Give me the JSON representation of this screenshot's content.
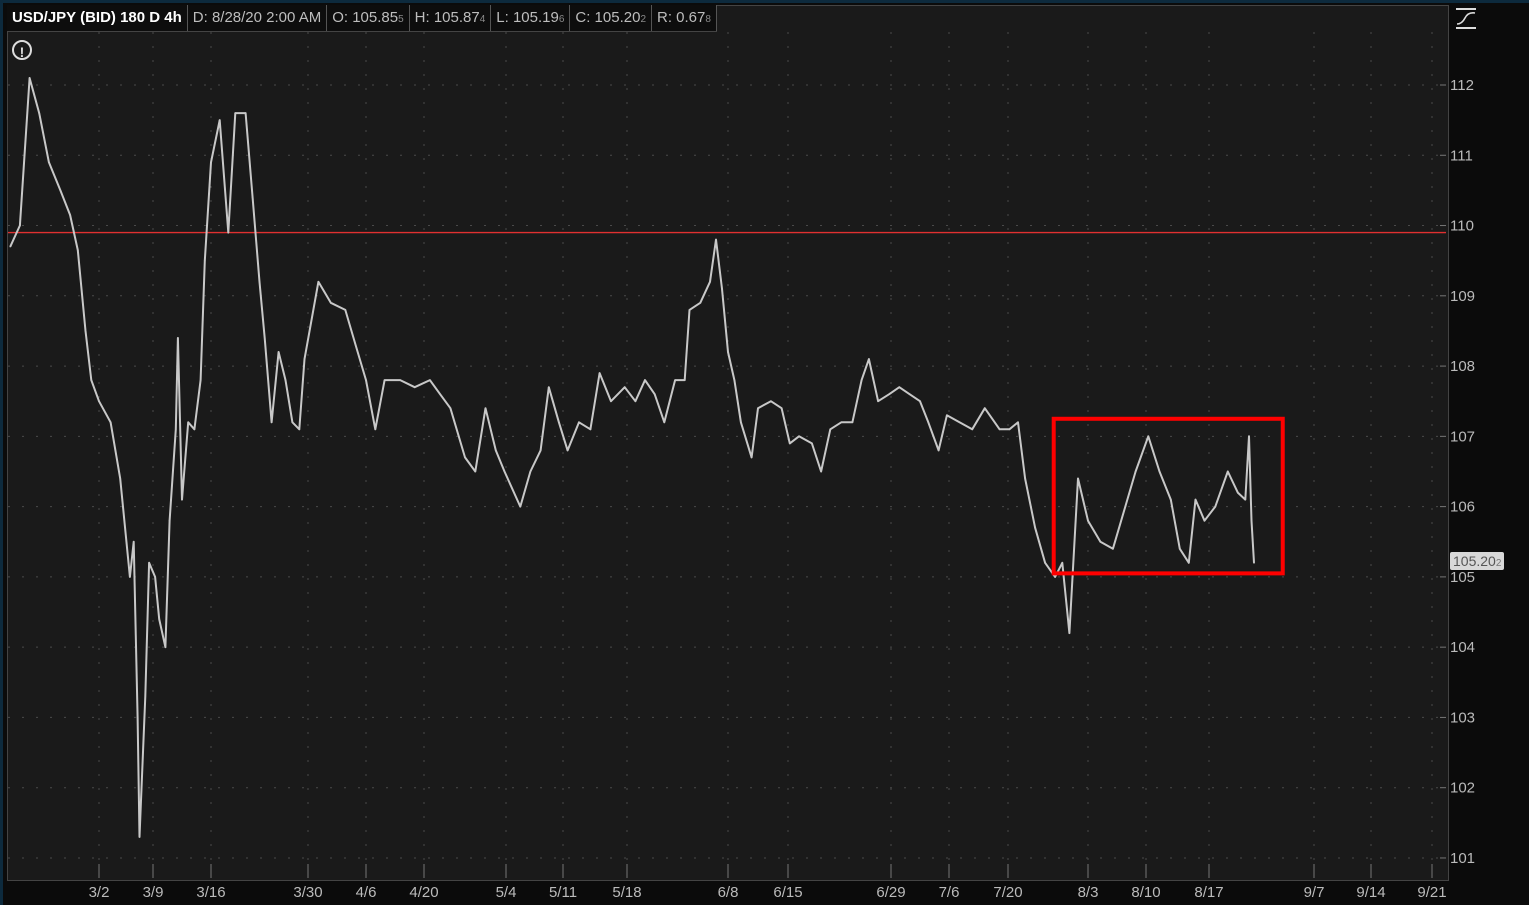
{
  "header": {
    "title": "USD/JPY (BID) 180 D 4h",
    "date": "D: 8/28/20 2:00 AM",
    "open": {
      "main": "O: 105.85",
      "sub": "5"
    },
    "high": {
      "main": "H: 105.87",
      "sub": "4"
    },
    "low": {
      "main": "L: 105.19",
      "sub": "6"
    },
    "close": {
      "main": "C: 105.20",
      "sub": "2"
    },
    "range": {
      "main": "R: 0.67",
      "sub": "8"
    }
  },
  "icons": {
    "alert": "exclamation-circle-icon",
    "style": "chart-style-icon"
  },
  "last_price": {
    "main": "105.20",
    "sub": "2"
  },
  "colors": {
    "background": "#1a1a1a",
    "price_line": "#c8c8c8",
    "reference_line": "#e03030",
    "annotation_box": "#ff0000",
    "grid": "#4a4a4a"
  },
  "chart_data": {
    "type": "line",
    "title": "USD/JPY (BID) 180 D 4h",
    "ylim": [
      100.7,
      112.7
    ],
    "yticks": [
      112,
      111,
      110,
      109,
      108,
      107,
      106,
      105,
      104,
      103,
      102,
      101
    ],
    "xticks": [
      "3/2",
      "3/9",
      "3/16",
      "3/30",
      "4/6",
      "4/20",
      "5/4",
      "5/11",
      "5/18",
      "6/8",
      "6/15",
      "6/29",
      "7/6",
      "7/20",
      "8/3",
      "8/10",
      "8/17",
      "9/7",
      "9/14",
      "9/21"
    ],
    "grid": true,
    "y_axis_side": "right",
    "reference_line": {
      "y": 109.9
    },
    "annotation_rect": {
      "x0": "2020-07-28T00",
      "x1": "2020-08-31T18",
      "y0": 105.05,
      "y1": 107.25
    },
    "series": [
      {
        "points": [
          [
            "2020-02-19T12",
            109.7
          ],
          [
            "2020-02-20T18",
            110.0
          ],
          [
            "2020-02-22T00",
            112.1
          ],
          [
            "2020-02-23T06",
            111.6
          ],
          [
            "2020-02-24T12",
            110.9
          ],
          [
            "2020-02-26T00",
            110.5
          ],
          [
            "2020-02-27T06",
            110.15
          ],
          [
            "2020-02-28T06",
            109.65
          ],
          [
            "2020-02-29T06",
            108.5
          ],
          [
            "2020-03-01T00",
            107.8
          ],
          [
            "2020-03-02T00",
            107.5
          ],
          [
            "2020-03-03T12",
            107.2
          ],
          [
            "2020-03-04T18",
            106.4
          ],
          [
            "2020-03-06T00",
            105.0
          ],
          [
            "2020-03-06T12",
            105.5
          ],
          [
            "2020-03-07T00",
            103.0
          ],
          [
            "2020-03-07T06",
            101.3
          ],
          [
            "2020-03-08T00",
            103.3
          ],
          [
            "2020-03-08T12",
            105.2
          ],
          [
            "2020-03-09T06",
            105.0
          ],
          [
            "2020-03-09T18",
            104.4
          ],
          [
            "2020-03-10T12",
            104.0
          ],
          [
            "2020-03-11T00",
            105.8
          ],
          [
            "2020-03-11T18",
            107.1
          ],
          [
            "2020-03-12T00",
            108.4
          ],
          [
            "2020-03-12T12",
            106.1
          ],
          [
            "2020-03-13T06",
            107.2
          ],
          [
            "2020-03-14T00",
            107.1
          ],
          [
            "2020-03-14T18",
            107.8
          ],
          [
            "2020-03-15T06",
            109.5
          ],
          [
            "2020-03-16T00",
            110.9
          ],
          [
            "2020-03-17T06",
            111.5
          ],
          [
            "2020-03-18T12",
            109.9
          ],
          [
            "2020-03-19T12",
            111.6
          ],
          [
            "2020-03-21T00",
            111.6
          ],
          [
            "2020-03-22T00",
            110.4
          ],
          [
            "2020-03-23T00",
            109.2
          ],
          [
            "2020-03-23T18",
            108.4
          ],
          [
            "2020-03-24T18",
            107.2
          ],
          [
            "2020-03-25T18",
            108.2
          ],
          [
            "2020-03-26T18",
            107.8
          ],
          [
            "2020-03-27T18",
            107.2
          ],
          [
            "2020-03-28T18",
            107.1
          ],
          [
            "2020-03-29T12",
            108.1
          ],
          [
            "2020-03-31T06",
            109.2
          ],
          [
            "2020-04-01T18",
            108.9
          ],
          [
            "2020-04-03T12",
            108.8
          ],
          [
            "2020-04-04T18",
            108.3
          ],
          [
            "2020-04-06T00",
            107.8
          ],
          [
            "2020-04-08T06",
            107.1
          ],
          [
            "2020-04-10T12",
            107.8
          ],
          [
            "2020-04-14T06",
            107.8
          ],
          [
            "2020-04-17T18",
            107.7
          ],
          [
            "2020-04-21T00",
            107.8
          ],
          [
            "2020-04-22T18",
            107.6
          ],
          [
            "2020-04-24T12",
            107.4
          ],
          [
            "2020-04-27T00",
            106.7
          ],
          [
            "2020-04-28T18",
            106.5
          ],
          [
            "2020-04-30T12",
            107.4
          ],
          [
            "2020-05-02T06",
            106.8
          ],
          [
            "2020-05-03T18",
            106.5
          ],
          [
            "2020-05-05T18",
            106.0
          ],
          [
            "2020-05-07T00",
            106.5
          ],
          [
            "2020-05-08T06",
            106.8
          ],
          [
            "2020-05-09T06",
            107.7
          ],
          [
            "2020-05-10T12",
            107.2
          ],
          [
            "2020-05-11T12",
            106.8
          ],
          [
            "2020-05-12T18",
            107.2
          ],
          [
            "2020-05-14T00",
            107.1
          ],
          [
            "2020-05-15T00",
            107.9
          ],
          [
            "2020-05-16T06",
            107.5
          ],
          [
            "2020-05-17T18",
            107.7
          ],
          [
            "2020-05-19T18",
            107.5
          ],
          [
            "2020-05-21T18",
            107.8
          ],
          [
            "2020-05-23T18",
            107.6
          ],
          [
            "2020-05-25T18",
            107.2
          ],
          [
            "2020-05-28T00",
            107.8
          ],
          [
            "2020-05-30T00",
            107.8
          ],
          [
            "2020-05-31T00",
            108.8
          ],
          [
            "2020-06-02T06",
            108.9
          ],
          [
            "2020-06-04T06",
            109.2
          ],
          [
            "2020-06-05T12",
            109.8
          ],
          [
            "2020-06-06T18",
            109.1
          ],
          [
            "2020-06-08T00",
            108.2
          ],
          [
            "2020-06-08T18",
            107.8
          ],
          [
            "2020-06-09T12",
            107.2
          ],
          [
            "2020-06-10T18",
            106.7
          ],
          [
            "2020-06-11T12",
            107.4
          ],
          [
            "2020-06-13T00",
            107.5
          ],
          [
            "2020-06-14T06",
            107.4
          ],
          [
            "2020-06-15T06",
            106.9
          ],
          [
            "2020-06-16T12",
            107.0
          ],
          [
            "2020-06-18T06",
            106.9
          ],
          [
            "2020-06-19T12",
            106.5
          ],
          [
            "2020-06-20T18",
            107.1
          ],
          [
            "2020-06-22T06",
            107.2
          ],
          [
            "2020-06-23T18",
            107.2
          ],
          [
            "2020-06-25T00",
            107.8
          ],
          [
            "2020-06-26T00",
            108.1
          ],
          [
            "2020-06-27T06",
            107.5
          ],
          [
            "2020-06-28T18",
            107.6
          ],
          [
            "2020-06-30T00",
            107.7
          ],
          [
            "2020-07-01T06",
            107.6
          ],
          [
            "2020-07-02T12",
            107.5
          ],
          [
            "2020-07-03T12",
            107.2
          ],
          [
            "2020-07-04T18",
            106.8
          ],
          [
            "2020-07-05T18",
            107.3
          ],
          [
            "2020-07-08T12",
            107.2
          ],
          [
            "2020-07-11T12",
            107.1
          ],
          [
            "2020-07-14T12",
            107.4
          ],
          [
            "2020-07-18T00",
            107.1
          ],
          [
            "2020-07-20T06",
            107.1
          ],
          [
            "2020-07-21T18",
            107.2
          ],
          [
            "2020-07-23T00",
            106.4
          ],
          [
            "2020-07-24T18",
            105.7
          ],
          [
            "2020-07-26T12",
            105.2
          ],
          [
            "2020-07-28T06",
            105.0
          ],
          [
            "2020-07-29T12",
            105.2
          ],
          [
            "2020-07-30T18",
            104.2
          ],
          [
            "2020-08-01T06",
            106.4
          ],
          [
            "2020-08-03T00",
            105.8
          ],
          [
            "2020-08-04T12",
            105.5
          ],
          [
            "2020-08-06T00",
            105.4
          ],
          [
            "2020-08-07T12",
            106.0
          ],
          [
            "2020-08-08T18",
            106.5
          ],
          [
            "2020-08-10T06",
            107.0
          ],
          [
            "2020-08-11T12",
            106.5
          ],
          [
            "2020-08-12T18",
            106.1
          ],
          [
            "2020-08-13T18",
            105.4
          ],
          [
            "2020-08-14T18",
            105.2
          ],
          [
            "2020-08-15T12",
            106.1
          ],
          [
            "2020-08-16T12",
            105.8
          ],
          [
            "2020-08-18T06",
            106.0
          ],
          [
            "2020-08-20T18",
            106.5
          ],
          [
            "2020-08-22T18",
            106.2
          ],
          [
            "2020-08-24T06",
            106.1
          ],
          [
            "2020-08-25T00",
            107.0
          ],
          [
            "2020-08-25T12",
            105.8
          ],
          [
            "2020-08-26T00",
            105.2
          ]
        ]
      }
    ]
  }
}
